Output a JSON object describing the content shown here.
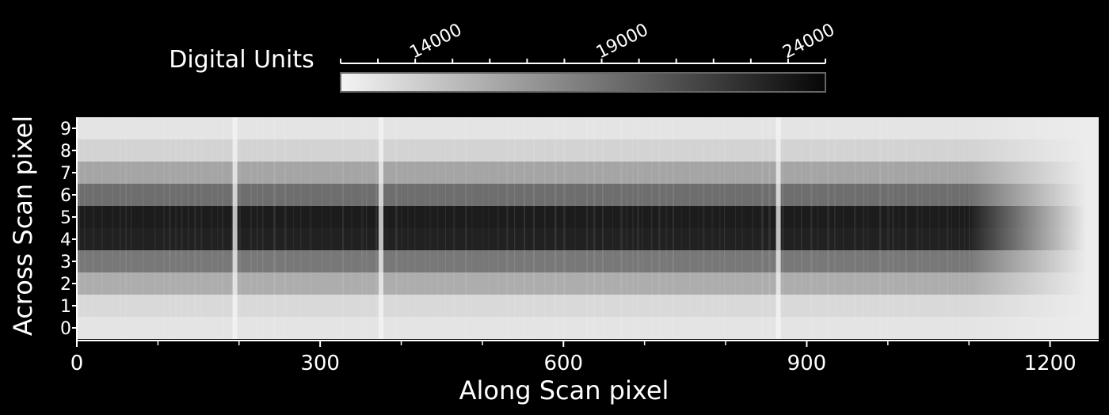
{
  "chart_data": {
    "type": "heatmap",
    "title": "",
    "xlabel": "Along Scan pixel",
    "ylabel": "Across Scan pixel",
    "xlim": [
      0,
      1260
    ],
    "ylim": [
      -0.5,
      9.5
    ],
    "x_ticks": [
      0,
      300,
      600,
      900,
      1200
    ],
    "y_ticks": [
      0,
      1,
      2,
      3,
      4,
      5,
      6,
      7,
      8,
      9
    ],
    "colorbar": {
      "label": "Digital Units",
      "range": [
        12000,
        25000
      ],
      "ticks": [
        14000,
        19000,
        24000
      ],
      "colormap": "white-to-black"
    },
    "rows": [
      0,
      1,
      2,
      3,
      4,
      5,
      6,
      7,
      8,
      9
    ],
    "row_levels_dn": [
      12900,
      13500,
      15900,
      18800,
      23500,
      23800,
      19300,
      16300,
      13800,
      12900
    ],
    "signal_fade_start_x": 1100,
    "signal_end_x": 1245,
    "bright_columns_x": [
      195,
      375,
      865
    ],
    "grid": false
  },
  "colors": {
    "background": "#000000",
    "text": "#ffffff"
  }
}
